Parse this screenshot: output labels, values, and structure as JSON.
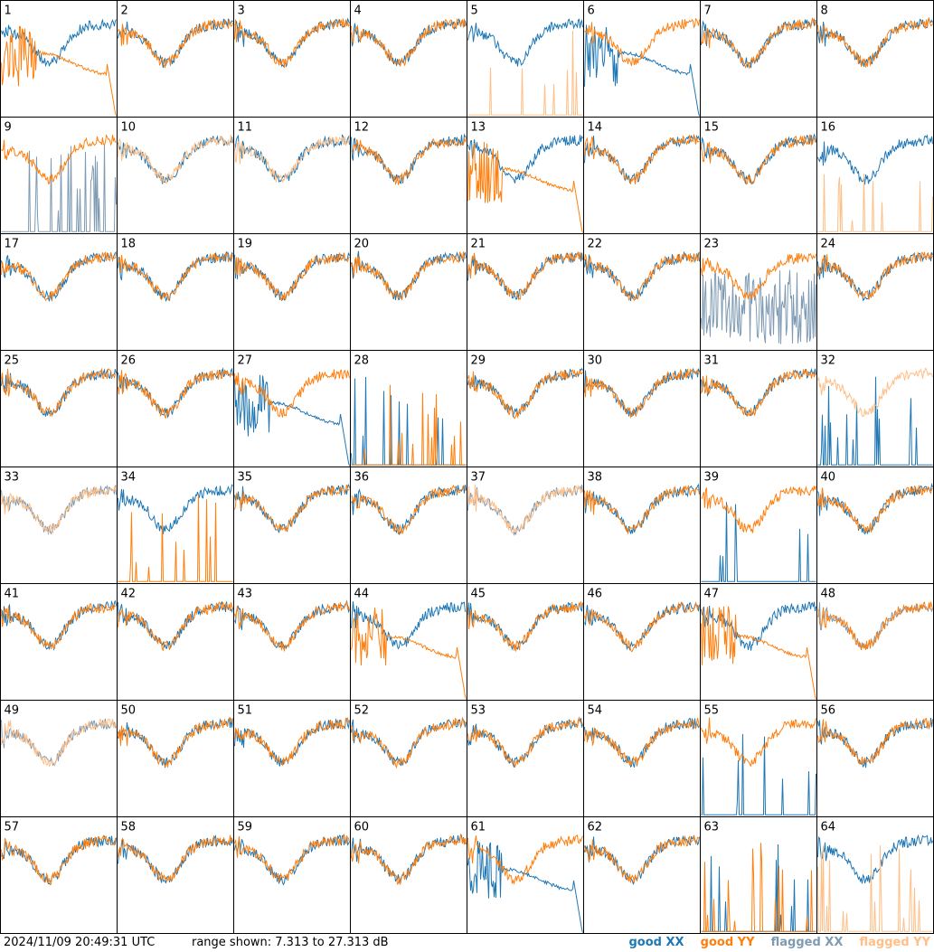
{
  "footer": {
    "timestamp": "2024/11/09 20:49:31 UTC",
    "range_text": "range shown: 7.313 to 27.313 dB"
  },
  "legend": {
    "good_xx": "good XX",
    "good_yy": "good YY",
    "flagged_xx": "flagged XX",
    "flagged_yy": "flagged YY"
  },
  "colors": {
    "good_xx": "#1f77b4",
    "good_yy": "#ff7f0e",
    "flagged_xx": "#7f9bb3",
    "flagged_yy": "#ffbf87"
  },
  "chart_data": {
    "type": "line",
    "grid": {
      "rows": 8,
      "cols": 8
    },
    "ylim": [
      7.313,
      27.313
    ],
    "y_unit": "dB",
    "panels": [
      {
        "id": "1",
        "xx": {
          "pat": "normal",
          "flag": false
        },
        "yy": {
          "pat": "decay",
          "flag": false
        }
      },
      {
        "id": "2",
        "xx": {
          "pat": "normal",
          "flag": false
        },
        "yy": {
          "pat": "normal",
          "flag": false
        }
      },
      {
        "id": "3",
        "xx": {
          "pat": "normal",
          "flag": false
        },
        "yy": {
          "pat": "normal",
          "flag": false
        }
      },
      {
        "id": "4",
        "xx": {
          "pat": "normal",
          "flag": false
        },
        "yy": {
          "pat": "normal",
          "flag": false
        }
      },
      {
        "id": "5",
        "xx": {
          "pat": "normal",
          "flag": false
        },
        "yy": {
          "pat": "spikes",
          "flag": true
        }
      },
      {
        "id": "6",
        "xx": {
          "pat": "decay",
          "flag": false
        },
        "yy": {
          "pat": "normal",
          "flag": false
        }
      },
      {
        "id": "7",
        "xx": {
          "pat": "normal",
          "flag": false
        },
        "yy": {
          "pat": "normal",
          "flag": false
        }
      },
      {
        "id": "8",
        "xx": {
          "pat": "normal",
          "flag": false
        },
        "yy": {
          "pat": "normal",
          "flag": false
        }
      },
      {
        "id": "9",
        "xx": {
          "pat": "spikes",
          "flag": true
        },
        "yy": {
          "pat": "normal",
          "flag": false
        }
      },
      {
        "id": "10",
        "xx": {
          "pat": "normal",
          "flag": false
        },
        "yy": {
          "pat": "normal",
          "flag": true
        }
      },
      {
        "id": "11",
        "xx": {
          "pat": "normal",
          "flag": false
        },
        "yy": {
          "pat": "normal",
          "flag": true
        }
      },
      {
        "id": "12",
        "xx": {
          "pat": "normal",
          "flag": false
        },
        "yy": {
          "pat": "normal",
          "flag": false
        }
      },
      {
        "id": "13",
        "xx": {
          "pat": "normal",
          "flag": false
        },
        "yy": {
          "pat": "decay",
          "flag": false
        }
      },
      {
        "id": "14",
        "xx": {
          "pat": "normal",
          "flag": false
        },
        "yy": {
          "pat": "normal",
          "flag": false
        }
      },
      {
        "id": "15",
        "xx": {
          "pat": "normal",
          "flag": false
        },
        "yy": {
          "pat": "normal",
          "flag": false
        }
      },
      {
        "id": "16",
        "xx": {
          "pat": "normal",
          "flag": false
        },
        "yy": {
          "pat": "spikes",
          "flag": true
        }
      },
      {
        "id": "17",
        "xx": {
          "pat": "normal",
          "flag": false
        },
        "yy": {
          "pat": "normal",
          "flag": false
        }
      },
      {
        "id": "18",
        "xx": {
          "pat": "normal",
          "flag": false
        },
        "yy": {
          "pat": "normal",
          "flag": false
        }
      },
      {
        "id": "19",
        "xx": {
          "pat": "normal",
          "flag": false
        },
        "yy": {
          "pat": "normal",
          "flag": false
        }
      },
      {
        "id": "20",
        "xx": {
          "pat": "normal",
          "flag": false
        },
        "yy": {
          "pat": "normal",
          "flag": false
        }
      },
      {
        "id": "21",
        "xx": {
          "pat": "normal",
          "flag": false
        },
        "yy": {
          "pat": "normal",
          "flag": false
        }
      },
      {
        "id": "22",
        "xx": {
          "pat": "normal",
          "flag": false
        },
        "yy": {
          "pat": "normal",
          "flag": false
        }
      },
      {
        "id": "23",
        "xx": {
          "pat": "noisy",
          "flag": true
        },
        "yy": {
          "pat": "normal",
          "flag": false
        }
      },
      {
        "id": "24",
        "xx": {
          "pat": "normal",
          "flag": false
        },
        "yy": {
          "pat": "normal",
          "flag": false
        }
      },
      {
        "id": "25",
        "xx": {
          "pat": "normal",
          "flag": false
        },
        "yy": {
          "pat": "normal",
          "flag": false
        }
      },
      {
        "id": "26",
        "xx": {
          "pat": "normal",
          "flag": false
        },
        "yy": {
          "pat": "normal",
          "flag": false
        }
      },
      {
        "id": "27",
        "xx": {
          "pat": "decay",
          "flag": false
        },
        "yy": {
          "pat": "normal",
          "flag": false
        }
      },
      {
        "id": "28",
        "xx": {
          "pat": "spikes",
          "flag": false
        },
        "yy": {
          "pat": "spikes",
          "flag": false
        }
      },
      {
        "id": "29",
        "xx": {
          "pat": "normal",
          "flag": false
        },
        "yy": {
          "pat": "normal",
          "flag": false
        }
      },
      {
        "id": "30",
        "xx": {
          "pat": "normal",
          "flag": false
        },
        "yy": {
          "pat": "normal",
          "flag": false
        }
      },
      {
        "id": "31",
        "xx": {
          "pat": "normal",
          "flag": false
        },
        "yy": {
          "pat": "normal",
          "flag": false
        }
      },
      {
        "id": "32",
        "xx": {
          "pat": "spikes",
          "flag": false
        },
        "yy": {
          "pat": "normal",
          "flag": true
        }
      },
      {
        "id": "33",
        "xx": {
          "pat": "normal",
          "flag": true
        },
        "yy": {
          "pat": "normal",
          "flag": true
        }
      },
      {
        "id": "34",
        "xx": {
          "pat": "normal",
          "flag": false
        },
        "yy": {
          "pat": "spikes",
          "flag": false
        }
      },
      {
        "id": "35",
        "xx": {
          "pat": "normal",
          "flag": false
        },
        "yy": {
          "pat": "normal",
          "flag": false
        }
      },
      {
        "id": "36",
        "xx": {
          "pat": "normal",
          "flag": false
        },
        "yy": {
          "pat": "normal",
          "flag": false
        }
      },
      {
        "id": "37",
        "xx": {
          "pat": "normal",
          "flag": true
        },
        "yy": {
          "pat": "normal",
          "flag": true
        }
      },
      {
        "id": "38",
        "xx": {
          "pat": "normal",
          "flag": false
        },
        "yy": {
          "pat": "normal",
          "flag": false
        }
      },
      {
        "id": "39",
        "xx": {
          "pat": "spikes",
          "flag": false
        },
        "yy": {
          "pat": "normal",
          "flag": false
        }
      },
      {
        "id": "40",
        "xx": {
          "pat": "normal",
          "flag": false
        },
        "yy": {
          "pat": "normal",
          "flag": false
        }
      },
      {
        "id": "41",
        "xx": {
          "pat": "normal",
          "flag": false
        },
        "yy": {
          "pat": "normal",
          "flag": false
        }
      },
      {
        "id": "42",
        "xx": {
          "pat": "normal",
          "flag": false
        },
        "yy": {
          "pat": "normal",
          "flag": false
        }
      },
      {
        "id": "43",
        "xx": {
          "pat": "normal",
          "flag": false
        },
        "yy": {
          "pat": "normal",
          "flag": false
        }
      },
      {
        "id": "44",
        "xx": {
          "pat": "normal",
          "flag": false
        },
        "yy": {
          "pat": "decay",
          "flag": false
        }
      },
      {
        "id": "45",
        "xx": {
          "pat": "normal",
          "flag": false
        },
        "yy": {
          "pat": "normal",
          "flag": false
        }
      },
      {
        "id": "46",
        "xx": {
          "pat": "normal",
          "flag": false
        },
        "yy": {
          "pat": "normal",
          "flag": false
        }
      },
      {
        "id": "47",
        "xx": {
          "pat": "normal",
          "flag": false
        },
        "yy": {
          "pat": "decay",
          "flag": false
        }
      },
      {
        "id": "48",
        "xx": {
          "pat": "normal",
          "flag": true
        },
        "yy": {
          "pat": "normal",
          "flag": false
        }
      },
      {
        "id": "49",
        "xx": {
          "pat": "normal",
          "flag": true
        },
        "yy": {
          "pat": "normal",
          "flag": true
        }
      },
      {
        "id": "50",
        "xx": {
          "pat": "normal",
          "flag": false
        },
        "yy": {
          "pat": "normal",
          "flag": false
        }
      },
      {
        "id": "51",
        "xx": {
          "pat": "normal",
          "flag": false
        },
        "yy": {
          "pat": "normal",
          "flag": false
        }
      },
      {
        "id": "52",
        "xx": {
          "pat": "normal",
          "flag": false
        },
        "yy": {
          "pat": "normal",
          "flag": false
        }
      },
      {
        "id": "53",
        "xx": {
          "pat": "normal",
          "flag": false
        },
        "yy": {
          "pat": "normal",
          "flag": false
        }
      },
      {
        "id": "54",
        "xx": {
          "pat": "normal",
          "flag": false
        },
        "yy": {
          "pat": "normal",
          "flag": false
        }
      },
      {
        "id": "55",
        "xx": {
          "pat": "spikes",
          "flag": false
        },
        "yy": {
          "pat": "normal",
          "flag": false
        }
      },
      {
        "id": "56",
        "xx": {
          "pat": "normal",
          "flag": false
        },
        "yy": {
          "pat": "normal",
          "flag": false
        }
      },
      {
        "id": "57",
        "xx": {
          "pat": "normal",
          "flag": false
        },
        "yy": {
          "pat": "normal",
          "flag": false
        }
      },
      {
        "id": "58",
        "xx": {
          "pat": "normal",
          "flag": false
        },
        "yy": {
          "pat": "normal",
          "flag": false
        }
      },
      {
        "id": "59",
        "xx": {
          "pat": "normal",
          "flag": false
        },
        "yy": {
          "pat": "normal",
          "flag": false
        }
      },
      {
        "id": "60",
        "xx": {
          "pat": "normal",
          "flag": false
        },
        "yy": {
          "pat": "normal",
          "flag": false
        }
      },
      {
        "id": "61",
        "xx": {
          "pat": "decay",
          "flag": false
        },
        "yy": {
          "pat": "normal",
          "flag": false
        }
      },
      {
        "id": "62",
        "xx": {
          "pat": "normal",
          "flag": false
        },
        "yy": {
          "pat": "normal",
          "flag": false
        }
      },
      {
        "id": "63",
        "xx": {
          "pat": "spikes",
          "flag": false
        },
        "yy": {
          "pat": "spikes",
          "flag": false
        }
      },
      {
        "id": "64",
        "xx": {
          "pat": "normal",
          "flag": false
        },
        "yy": {
          "pat": "spikes",
          "flag": true
        }
      }
    ]
  }
}
